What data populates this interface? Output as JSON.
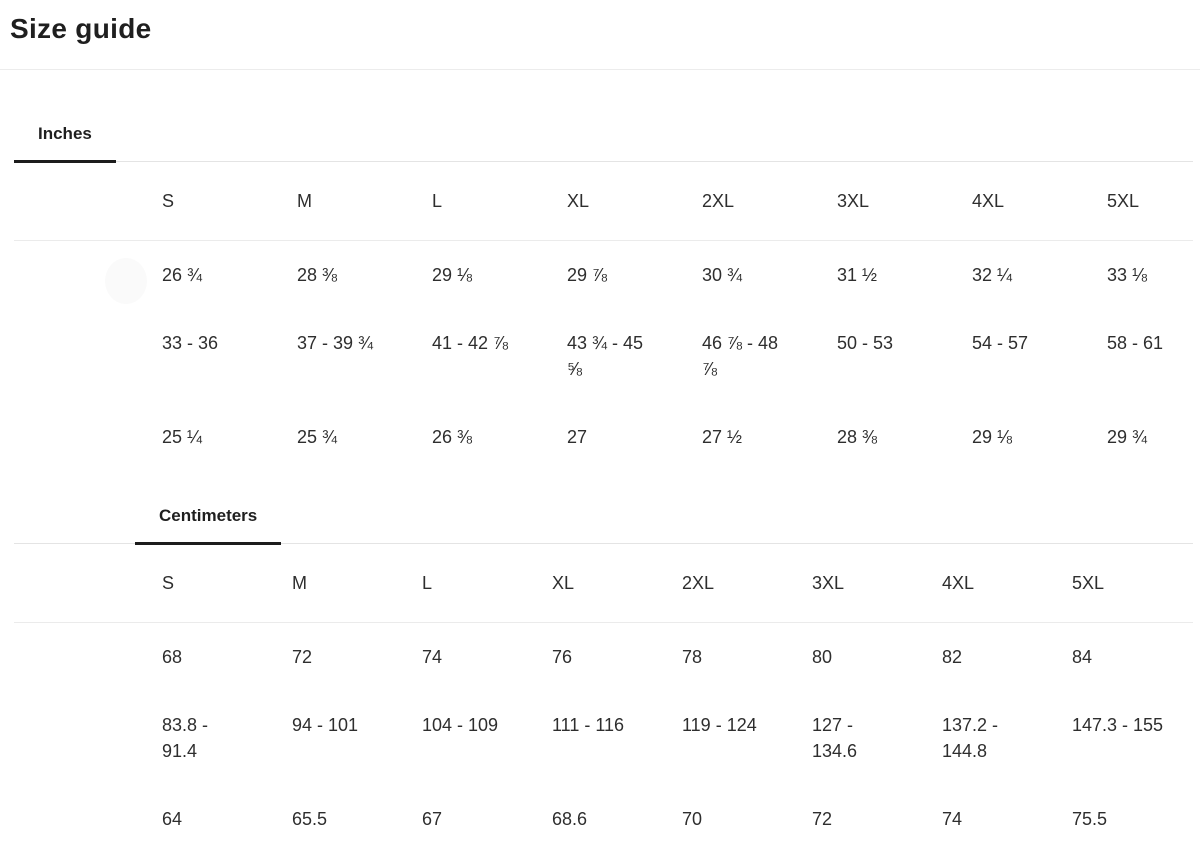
{
  "page": {
    "title": "Size guide"
  },
  "sections": [
    {
      "id": "inches",
      "tab_label": "Inches",
      "columns": [
        "S",
        "M",
        "L",
        "XL",
        "2XL",
        "3XL",
        "4XL",
        "5XL"
      ],
      "rows": [
        [
          "26 ¾",
          "28 ⅜",
          "29 ⅛",
          "29 ⅞",
          "30 ¾",
          "31 ½",
          "32 ¼",
          "33 ⅛"
        ],
        [
          "33 - 36",
          "37 - 39 ¾",
          "41 - 42 ⅞",
          "43 ¾ - 45\n⅝",
          "46 ⅞ - 48\n⅞",
          "50 - 53",
          "54 - 57",
          "58 - 61"
        ],
        [
          "25 ¼",
          "25 ¾",
          "26 ⅜",
          "27",
          "27 ½",
          "28 ⅜",
          "29 ⅛",
          "29 ¾"
        ]
      ]
    },
    {
      "id": "centimeters",
      "tab_label": "Centimeters",
      "columns": [
        "S",
        "M",
        "L",
        "XL",
        "2XL",
        "3XL",
        "4XL",
        "5XL"
      ],
      "rows": [
        [
          "68",
          "72",
          "74",
          "76",
          "78",
          "80",
          "82",
          "84"
        ],
        [
          "83.8 -\n91.4",
          "94 - 101",
          "104 - 109",
          "111 - 116",
          "119 - 124",
          "127 -\n134.6",
          "137.2 -\n144.8",
          "147.3 - 155"
        ],
        [
          "64",
          "65.5",
          "67",
          "68.6",
          "70",
          "72",
          "74",
          "75.5"
        ]
      ]
    }
  ],
  "colors": {
    "text": "#2e2e2e",
    "heading": "#1f1f1f",
    "divider": "#ececec",
    "tab_underline": "#1c1c1c"
  }
}
